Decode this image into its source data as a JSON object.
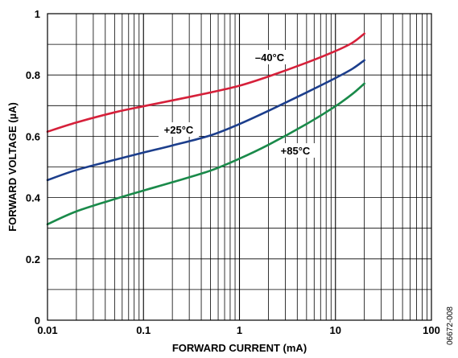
{
  "chart_data": {
    "type": "line",
    "xlabel": "FORWARD CURRENT (mA)",
    "ylabel": "FORWARD VOLTAGE (µA)",
    "xscale": "log",
    "xlim": [
      0.01,
      100
    ],
    "ylim": [
      0,
      1
    ],
    "grid": true,
    "x_ticks": [
      "0.01",
      "0.1",
      "1",
      "10",
      "100"
    ],
    "y_ticks": [
      "0",
      "0.2",
      "0.4",
      "0.6",
      "0.8",
      "1"
    ],
    "series": [
      {
        "name": "–40°C",
        "color": "#d6203a",
        "x": [
          0.01,
          0.02,
          0.05,
          0.1,
          0.2,
          0.5,
          1,
          2,
          5,
          10,
          15,
          20
        ],
        "y": [
          0.615,
          0.645,
          0.678,
          0.698,
          0.717,
          0.743,
          0.765,
          0.795,
          0.84,
          0.878,
          0.905,
          0.935
        ]
      },
      {
        "name": "+25°C",
        "color": "#1c3e8c",
        "x": [
          0.01,
          0.02,
          0.05,
          0.1,
          0.2,
          0.5,
          1,
          2,
          5,
          10,
          15,
          20
        ],
        "y": [
          0.457,
          0.49,
          0.523,
          0.547,
          0.57,
          0.603,
          0.64,
          0.683,
          0.743,
          0.79,
          0.82,
          0.848
        ]
      },
      {
        "name": "+85°C",
        "color": "#1a8a4a",
        "x": [
          0.01,
          0.02,
          0.05,
          0.1,
          0.2,
          0.5,
          1,
          2,
          5,
          10,
          15,
          20
        ],
        "y": [
          0.313,
          0.355,
          0.395,
          0.423,
          0.45,
          0.488,
          0.527,
          0.572,
          0.64,
          0.698,
          0.738,
          0.772
        ]
      }
    ],
    "annotations": [
      {
        "text": "–40°C",
        "series": 0
      },
      {
        "text": "+25°C",
        "series": 1
      },
      {
        "text": "+85°C",
        "series": 2
      }
    ],
    "figure_code": "06672-008"
  }
}
